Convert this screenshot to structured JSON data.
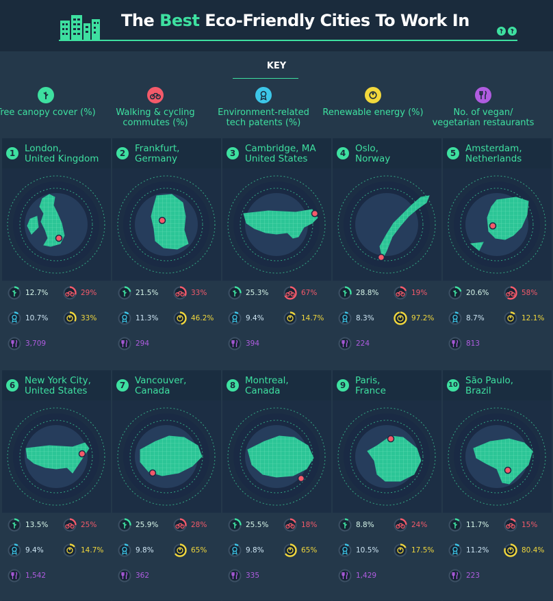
{
  "header": {
    "title_pre": "The",
    "title_highlight": "Best",
    "title_post": "Eco-Friendly Cities To Work In"
  },
  "key": {
    "title": "KEY",
    "items": [
      {
        "label": "Tree canopy cover (%)",
        "icon": "tree-icon",
        "color": "#3ee0a0"
      },
      {
        "label": "Walking & cycling commutes (%)",
        "icon": "bicycle-icon",
        "color": "#f45a6a"
      },
      {
        "label": "Environment-related tech patents (%)",
        "icon": "patent-ribbon-icon",
        "color": "#3cc6e8"
      },
      {
        "label": "Renewable energy (%)",
        "icon": "energy-plug-icon",
        "color": "#f2d83c"
      },
      {
        "label": "No. of vegan/ vegetarian restaurants",
        "icon": "cutlery-icon",
        "color": "#b05ce0"
      }
    ]
  },
  "colors": {
    "accent": "#3ee0a0",
    "tree": "#3ee0a0",
    "walk": "#f45a6a",
    "patent": "#3cc6e8",
    "renew": "#f2d83c",
    "vegan": "#b05ce0",
    "background": "#24384a"
  },
  "chart_data": {
    "type": "table",
    "columns": [
      "Tree canopy cover (%)",
      "Walking & cycling commutes (%)",
      "Environment-related tech patents (%)",
      "Renewable energy (%)",
      "No. of vegan/ vegetarian restaurants"
    ],
    "rows": [
      {
        "rank": "1",
        "city": "London,",
        "country": "United Kingdom",
        "tree": "12.7%",
        "walk": "29%",
        "patent": "10.7%",
        "renew": "33%",
        "vegan": "3,709",
        "v": [
          12.7,
          29,
          10.7,
          33,
          3709
        ]
      },
      {
        "rank": "2",
        "city": "Frankfurt,",
        "country": "Germany",
        "tree": "21.5%",
        "walk": "33%",
        "patent": "11.3%",
        "renew": "46.2%",
        "vegan": "294",
        "v": [
          21.5,
          33,
          11.3,
          46.2,
          294
        ]
      },
      {
        "rank": "3",
        "city": "Cambridge, MA",
        "country": "United States",
        "tree": "25.3%",
        "walk": "67%",
        "patent": "9.4%",
        "renew": "14.7%",
        "vegan": "394",
        "v": [
          25.3,
          67,
          9.4,
          14.7,
          394
        ]
      },
      {
        "rank": "4",
        "city": "Oslo,",
        "country": "Norway",
        "tree": "28.8%",
        "walk": "19%",
        "patent": "8.3%",
        "renew": "97.2%",
        "vegan": "224",
        "v": [
          28.8,
          19,
          8.3,
          97.2,
          224
        ]
      },
      {
        "rank": "5",
        "city": "Amsterdam,",
        "country": "Netherlands",
        "tree": "20.6%",
        "walk": "58%",
        "patent": "8.7%",
        "renew": "12.1%",
        "vegan": "813",
        "v": [
          20.6,
          58,
          8.7,
          12.1,
          813
        ]
      },
      {
        "rank": "6",
        "city": "New York City,",
        "country": "United States",
        "tree": "13.5%",
        "walk": "25%",
        "patent": "9.4%",
        "renew": "14.7%",
        "vegan": "1,542",
        "v": [
          13.5,
          25,
          9.4,
          14.7,
          1542
        ]
      },
      {
        "rank": "7",
        "city": "Vancouver,",
        "country": "Canada",
        "tree": "25.9%",
        "walk": "28%",
        "patent": "9.8%",
        "renew": "65%",
        "vegan": "362",
        "v": [
          25.9,
          28,
          9.8,
          65,
          362
        ]
      },
      {
        "rank": "8",
        "city": "Montreal,",
        "country": "Canada",
        "tree": "25.5%",
        "walk": "18%",
        "patent": "9.8%",
        "renew": "65%",
        "vegan": "335",
        "v": [
          25.5,
          18,
          9.8,
          65,
          335
        ]
      },
      {
        "rank": "9",
        "city": "Paris,",
        "country": "France",
        "tree": "8.8%",
        "walk": "24%",
        "patent": "10.5%",
        "renew": "17.5%",
        "vegan": "1,429",
        "v": [
          8.8,
          24,
          10.5,
          17.5,
          1429
        ]
      },
      {
        "rank": "10",
        "city": "São Paulo,",
        "country": "Brazil",
        "tree": "11.7%",
        "walk": "15%",
        "patent": "11.2%",
        "renew": "80.4%",
        "vegan": "223",
        "v": [
          11.7,
          15,
          11.2,
          80.4,
          223
        ]
      }
    ]
  }
}
